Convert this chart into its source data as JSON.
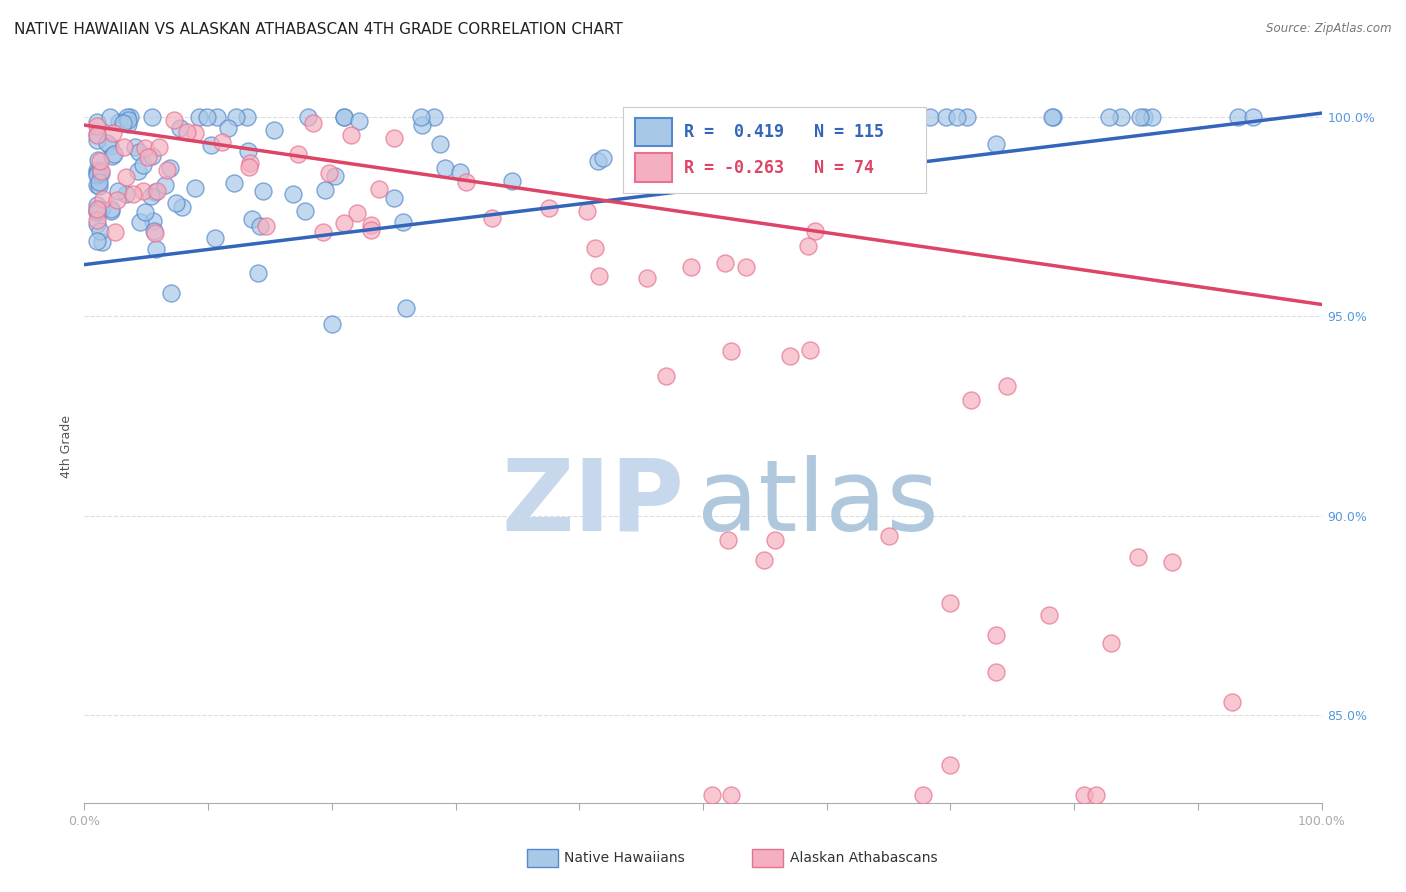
{
  "title": "NATIVE HAWAIIAN VS ALASKAN ATHABASCAN 4TH GRADE CORRELATION CHART",
  "source": "Source: ZipAtlas.com",
  "ylabel": "4th Grade",
  "xlim": [
    0.0,
    1.0
  ],
  "ylim": [
    0.828,
    1.007
  ],
  "yticks": [
    0.85,
    0.9,
    0.95,
    1.0
  ],
  "ytick_labels": [
    "85.0%",
    "90.0%",
    "95.0%",
    "100.0%"
  ],
  "legend_blue_r": "R =  0.419",
  "legend_blue_n": "N = 115",
  "legend_pink_r": "R = -0.263",
  "legend_pink_n": "N = 74",
  "legend_blue_label": "Native Hawaiians",
  "legend_pink_label": "Alaskan Athabascans",
  "blue_color": "#a8c8e8",
  "pink_color": "#f4b0c0",
  "blue_edge_color": "#5588cc",
  "pink_edge_color": "#e87090",
  "blue_line_color": "#3366bb",
  "pink_line_color": "#dd4466",
  "background_color": "#ffffff",
  "blue_trend_y_start": 0.963,
  "blue_trend_y_end": 1.001,
  "pink_trend_y_start": 0.998,
  "pink_trend_y_end": 0.953,
  "grid_color": "#dddddd",
  "title_fontsize": 11,
  "tick_fontsize": 9,
  "legend_fontsize": 11,
  "watermark_color_zip": "#c8d8ec",
  "watermark_color_atlas": "#b0c8de"
}
